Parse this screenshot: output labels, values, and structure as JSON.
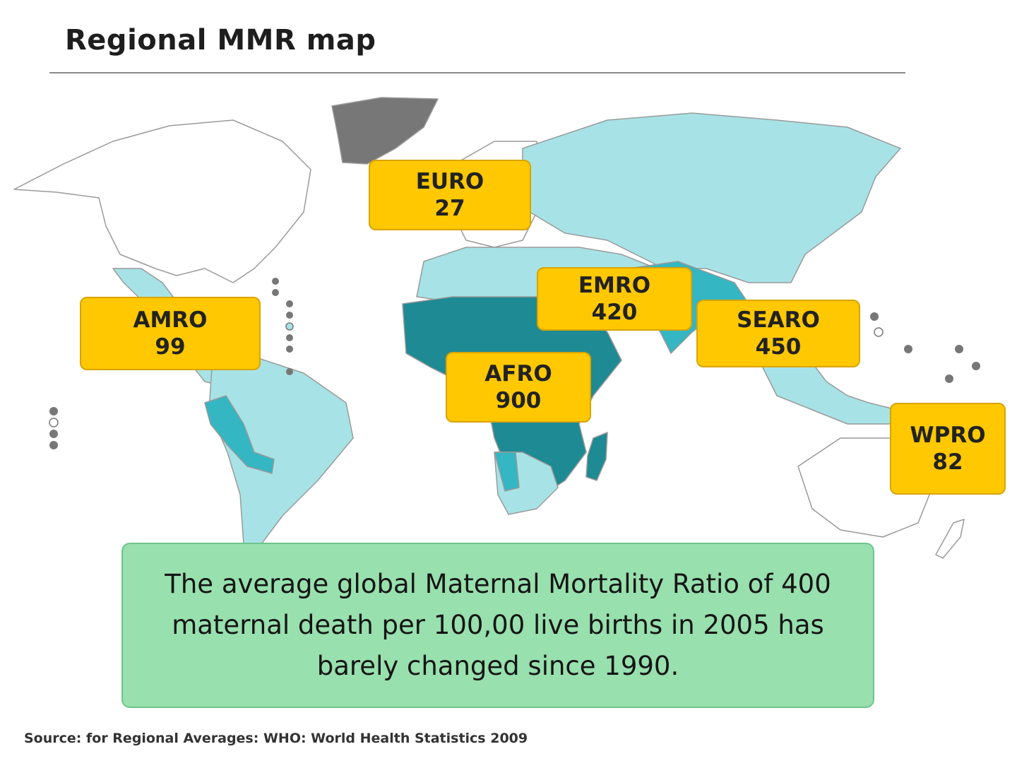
{
  "title": "Regional MMR map",
  "colors": {
    "very_low": "#ffffff",
    "low": "#a7e3e6",
    "medium": "#34b6c3",
    "high": "#1e8a93",
    "no_data": "#777777",
    "label_bg": "#ffc800",
    "note_bg": "#98e0ae"
  },
  "regions": [
    {
      "code": "EURO",
      "value": "27"
    },
    {
      "code": "AMRO",
      "value": "99"
    },
    {
      "code": "EMRO",
      "value": "420"
    },
    {
      "code": "SEARO",
      "value": "450"
    },
    {
      "code": "AFRO",
      "value": "900"
    },
    {
      "code": "WPRO",
      "value": "82"
    }
  ],
  "note": "The average global Maternal Mortality Ratio of 400 maternal death per 100,00 live births in 2005 has barely changed since 1990.",
  "source": "Source: for Regional Averages: WHO: World Health Statistics 2009"
}
